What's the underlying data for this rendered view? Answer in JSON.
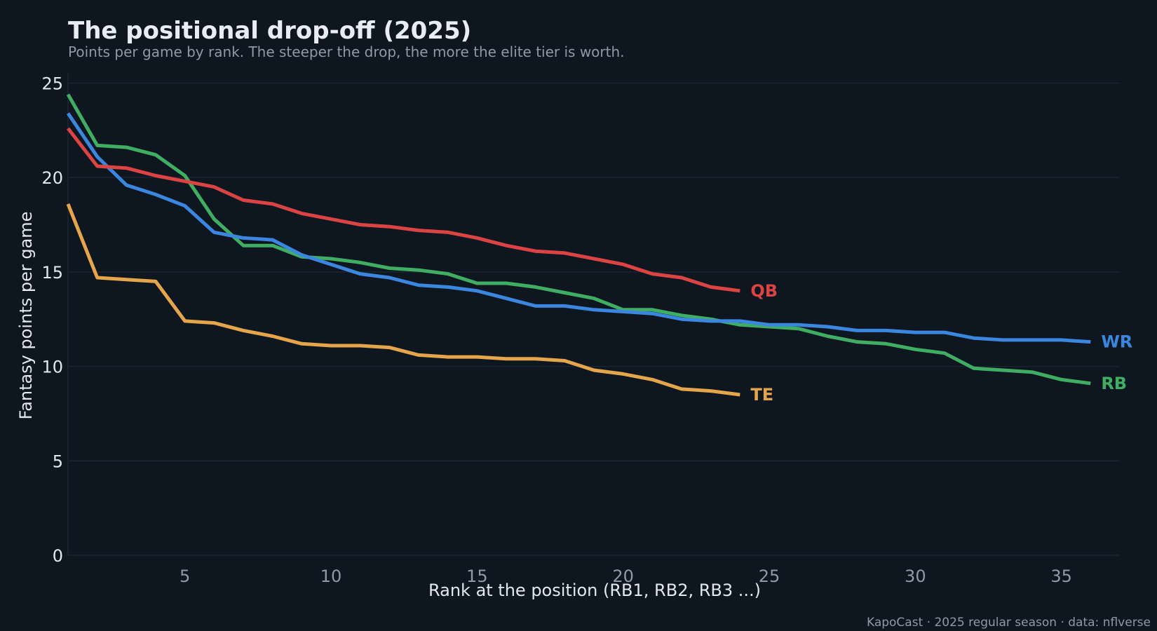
{
  "chart_data": {
    "type": "line",
    "title": "The positional drop-off (2025)",
    "subtitle": "Points per game by rank. The steeper the drop, the more the elite tier is worth.",
    "xlabel": "Rank at the position (RB1, RB2, RB3 ...)",
    "ylabel": "Fantasy points per game",
    "xlim": [
      1,
      37
    ],
    "ylim": [
      0,
      25.5
    ],
    "xticks": [
      5,
      10,
      15,
      20,
      25,
      30,
      35
    ],
    "yticks": [
      0,
      5,
      10,
      15,
      20,
      25
    ],
    "grid": "horizontal",
    "legend": "inline labels at line ends",
    "series": [
      {
        "name": "RB",
        "color": "#3fae62",
        "x": [
          1,
          2,
          3,
          4,
          5,
          6,
          7,
          8,
          9,
          10,
          11,
          12,
          13,
          14,
          15,
          16,
          17,
          18,
          19,
          20,
          21,
          22,
          23,
          24,
          25,
          26,
          27,
          28,
          29,
          30,
          31,
          32,
          33,
          34,
          35,
          36
        ],
        "values": [
          24.4,
          21.7,
          21.6,
          21.2,
          20.1,
          17.8,
          16.4,
          16.4,
          15.8,
          15.7,
          15.5,
          15.2,
          15.1,
          14.9,
          14.4,
          14.4,
          14.2,
          13.9,
          13.6,
          13.0,
          13.0,
          12.7,
          12.5,
          12.2,
          12.1,
          12.0,
          11.6,
          11.3,
          11.2,
          10.9,
          10.7,
          9.9,
          9.8,
          9.7,
          9.3,
          9.1
        ]
      },
      {
        "name": "WR",
        "color": "#3b86de",
        "x": [
          1,
          2,
          3,
          4,
          5,
          6,
          7,
          8,
          9,
          10,
          11,
          12,
          13,
          14,
          15,
          16,
          17,
          18,
          19,
          20,
          21,
          22,
          23,
          24,
          25,
          26,
          27,
          28,
          29,
          30,
          31,
          32,
          33,
          34,
          35,
          36
        ],
        "values": [
          23.4,
          21.1,
          19.6,
          19.1,
          18.5,
          17.1,
          16.8,
          16.7,
          15.9,
          15.4,
          14.9,
          14.7,
          14.3,
          14.2,
          14.0,
          13.6,
          13.2,
          13.2,
          13.0,
          12.9,
          12.8,
          12.5,
          12.4,
          12.4,
          12.2,
          12.2,
          12.1,
          11.9,
          11.9,
          11.8,
          11.8,
          11.5,
          11.4,
          11.4,
          11.4,
          11.3
        ]
      },
      {
        "name": "QB",
        "color": "#dc4444",
        "x": [
          1,
          2,
          3,
          4,
          5,
          6,
          7,
          8,
          9,
          10,
          11,
          12,
          13,
          14,
          15,
          16,
          17,
          18,
          19,
          20,
          21,
          22,
          23,
          24
        ],
        "values": [
          22.6,
          20.6,
          20.5,
          20.1,
          19.8,
          19.5,
          18.8,
          18.6,
          18.1,
          17.8,
          17.5,
          17.4,
          17.2,
          17.1,
          16.8,
          16.4,
          16.1,
          16.0,
          15.7,
          15.4,
          14.9,
          14.7,
          14.2,
          14.0
        ]
      },
      {
        "name": "TE",
        "color": "#e5a54a",
        "x": [
          1,
          2,
          3,
          4,
          5,
          6,
          7,
          8,
          9,
          10,
          11,
          12,
          13,
          14,
          15,
          16,
          17,
          18,
          19,
          20,
          21,
          22,
          23,
          24
        ],
        "values": [
          18.6,
          14.7,
          14.6,
          14.5,
          12.4,
          12.3,
          11.9,
          11.6,
          11.2,
          11.1,
          11.1,
          11.0,
          10.6,
          10.5,
          10.5,
          10.4,
          10.4,
          10.3,
          9.8,
          9.6,
          9.3,
          8.8,
          8.7,
          8.5
        ]
      }
    ],
    "footer": "KapoCast · 2025 regular season · data: nflverse"
  }
}
